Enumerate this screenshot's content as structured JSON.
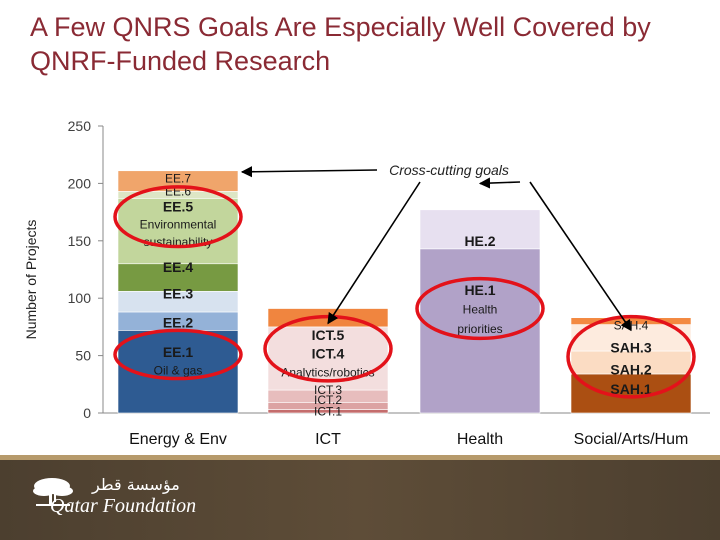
{
  "slide": {
    "title": "A Few QNRS Goals Are Especially Well Covered by QNRF-Funded Research"
  },
  "colors": {
    "title": "#8a2a34",
    "highlight_circle": "#e3121a",
    "axis": "#555555"
  },
  "chart_data": {
    "type": "bar",
    "stacked": true,
    "ylabel": "Number of Projects",
    "ylim": [
      0,
      250
    ],
    "yticks": [
      0,
      50,
      100,
      150,
      200,
      250
    ],
    "categories": [
      "Energy & Env",
      "ICT",
      "Health",
      "Social/Arts/Hum"
    ],
    "stacks": [
      {
        "category": "Energy & Env",
        "segments": [
          {
            "label": "EE.1",
            "value": 72,
            "color": "#2e5b92"
          },
          {
            "label": "EE.2",
            "value": 16,
            "color": "#94b2d8"
          },
          {
            "label": "EE.3",
            "value": 18,
            "color": "#d7e2ef"
          },
          {
            "label": "EE.4",
            "value": 24,
            "color": "#779a42"
          },
          {
            "label": "EE.5",
            "value": 57,
            "color": "#c2d69c"
          },
          {
            "label": "EE.6",
            "value": 6,
            "color": "#dde6c5"
          },
          {
            "label": "EE.7",
            "value": 18,
            "color": "#f0a56b"
          }
        ]
      },
      {
        "category": "ICT",
        "segments": [
          {
            "label": "ICT.1",
            "value": 3,
            "color": "#c46d6d"
          },
          {
            "label": "ICT.2",
            "value": 6,
            "color": "#dca3a3"
          },
          {
            "label": "ICT.3",
            "value": 11,
            "color": "#e7bdbd"
          },
          {
            "label": "ICT.4",
            "value": 55,
            "color": "#f3dede"
          },
          {
            "label": "ICT.5",
            "value": 16,
            "color": "#f0853f"
          }
        ]
      },
      {
        "category": "Health",
        "segments": [
          {
            "label": "HE.1",
            "value": 143,
            "color": "#b1a2c8"
          },
          {
            "label": "HE.2",
            "value": 34,
            "color": "#e7e0f0"
          }
        ]
      },
      {
        "category": "Social/Arts/Hum",
        "segments": [
          {
            "label": "SAH.1",
            "value": 34,
            "color": "#ab4f12"
          },
          {
            "label": "SAH.2",
            "value": 20,
            "color": "#fbdcc3"
          },
          {
            "label": "SAH.3",
            "value": 23,
            "color": "#fdebde"
          },
          {
            "label": "SAH.4",
            "value": 6,
            "color": "#f38940"
          }
        ]
      }
    ],
    "segment_labels": [
      {
        "text": "EE.7",
        "category": "Energy & Env",
        "at": 205
      },
      {
        "text": "EE.6",
        "category": "Energy & Env",
        "at": 194
      },
      {
        "text": "EE.5",
        "category": "Energy & Env",
        "at": 180,
        "bold": true
      },
      {
        "text": "Environmental",
        "category": "Energy & Env",
        "at": 165
      },
      {
        "text": "sustainability",
        "category": "Energy & Env",
        "at": 150
      },
      {
        "text": "EE.4",
        "category": "Energy & Env",
        "at": 127,
        "bold": true
      },
      {
        "text": "EE.3",
        "category": "Energy & Env",
        "at": 104,
        "bold": true
      },
      {
        "text": "EE.2",
        "category": "Energy & Env",
        "at": 79,
        "bold": true
      },
      {
        "text": "EE.1",
        "category": "Energy & Env",
        "at": 53,
        "bold": true
      },
      {
        "text": "Oil & gas",
        "category": "Energy & Env",
        "at": 38
      },
      {
        "text": "ICT.5",
        "category": "ICT",
        "at": 68,
        "bold": true
      },
      {
        "text": "ICT.4",
        "category": "ICT",
        "at": 52,
        "bold": true
      },
      {
        "text": "Analytics/robotics",
        "category": "ICT",
        "at": 36
      },
      {
        "text": "ICT.3",
        "category": "ICT",
        "at": 21
      },
      {
        "text": "ICT.2",
        "category": "ICT",
        "at": 12
      },
      {
        "text": "ICT.1",
        "category": "ICT",
        "at": 2
      },
      {
        "text": "HE.2",
        "category": "Health",
        "at": 150,
        "bold": true
      },
      {
        "text": "HE.1",
        "category": "Health",
        "at": 107,
        "bold": true
      },
      {
        "text": "Health",
        "category": "Health",
        "at": 91
      },
      {
        "text": "priorities",
        "category": "Health",
        "at": 74
      },
      {
        "text": "SAH.4",
        "category": "Social/Arts/Hum",
        "at": 77
      },
      {
        "text": "SAH.3",
        "category": "Social/Arts/Hum",
        "at": 57,
        "bold": true
      },
      {
        "text": "SAH.2",
        "category": "Social/Arts/Hum",
        "at": 38,
        "bold": true
      },
      {
        "text": "SAH.1",
        "category": "Social/Arts/Hum",
        "at": 21,
        "bold": true
      }
    ],
    "annotation": {
      "text": "Cross-cutting goals",
      "arrow_targets": [
        {
          "category": "Energy & Env",
          "value": 210
        },
        {
          "category": "ICT",
          "value": 78
        },
        {
          "category": "Health",
          "value": 200
        },
        {
          "category": "Social/Arts/Hum",
          "value": 72
        }
      ]
    },
    "highlights": [
      {
        "category": "Energy & Env",
        "from": 145,
        "to": 197
      },
      {
        "category": "Energy & Env",
        "from": 30,
        "to": 72
      },
      {
        "category": "ICT",
        "from": 28,
        "to": 84
      },
      {
        "category": "Health",
        "from": 65,
        "to": 117
      },
      {
        "category": "Social/Arts/Hum",
        "from": 14,
        "to": 84
      }
    ]
  },
  "footer": {
    "logo_text": "Qatar Foundation",
    "logo_arabic": "مؤسسة قطر"
  }
}
